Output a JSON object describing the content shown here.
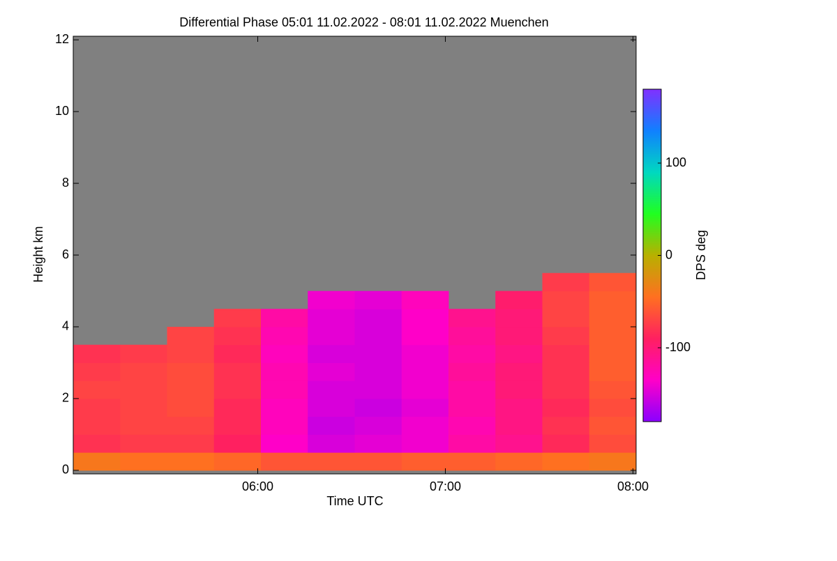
{
  "chart_data": {
    "type": "heatmap",
    "title": "Differential Phase   05:01 11.02.2022 - 08:01 11.02.2022 Muenchen",
    "x_label": "Time UTC",
    "y_label": "Height km",
    "colorbar_label": "DPS deg",
    "x": [
      "05:01",
      "05:16",
      "05:31",
      "05:46",
      "06:01",
      "06:16",
      "06:31",
      "06:46",
      "07:01",
      "07:16",
      "07:31",
      "07:46"
    ],
    "y": [
      0,
      0.5,
      1,
      1.5,
      2,
      2.5,
      3,
      3.5,
      4,
      4.5,
      5
    ],
    "values": [
      [
        -40,
        -45,
        -45,
        -50,
        -60,
        -60,
        -60,
        -55,
        -55,
        -50,
        -45,
        -40
      ],
      [
        -80,
        -75,
        -75,
        -90,
        -135,
        -150,
        -145,
        -140,
        -120,
        -110,
        -85,
        -65
      ],
      [
        -75,
        -70,
        -70,
        -85,
        -130,
        -155,
        -150,
        -140,
        -125,
        -105,
        -80,
        -60
      ],
      [
        -75,
        -70,
        -65,
        -85,
        -130,
        -150,
        -155,
        -145,
        -120,
        -105,
        -85,
        -65
      ],
      [
        -70,
        -70,
        -65,
        -80,
        -125,
        -150,
        -150,
        -140,
        -120,
        -100,
        -80,
        -60
      ],
      [
        -75,
        -70,
        -65,
        -80,
        -125,
        -145,
        -150,
        -140,
        -115,
        -100,
        -80,
        -55
      ],
      [
        -80,
        -75,
        -70,
        -85,
        -130,
        -150,
        -150,
        -140,
        -120,
        -105,
        -80,
        -55
      ],
      [
        null,
        null,
        -70,
        -80,
        -125,
        -145,
        -150,
        -135,
        -115,
        -100,
        -75,
        -55
      ],
      [
        null,
        null,
        null,
        -75,
        -120,
        -145,
        -150,
        -135,
        -110,
        -100,
        -70,
        -55
      ],
      [
        null,
        null,
        null,
        null,
        null,
        -140,
        -145,
        -130,
        null,
        -95,
        -70,
        -55
      ],
      [
        null,
        null,
        null,
        null,
        null,
        null,
        null,
        null,
        null,
        null,
        -75,
        -60
      ]
    ],
    "xlim": [
      "05:01",
      "08:01"
    ],
    "xticks": [
      "06:00",
      "07:00",
      "08:00"
    ],
    "ylim": [
      -0.1,
      12.1
    ],
    "yticks": [
      0,
      2,
      4,
      6,
      8,
      10,
      12
    ],
    "zlim": [
      -180,
      180
    ],
    "zticks": [
      100,
      0,
      -100
    ],
    "colormap": [
      "#8a00ff",
      "#ff00c8",
      "#ff2060",
      "#ff7020",
      "#b8b000",
      "#20ff20",
      "#00d8c0",
      "#1080ff",
      "#8030ff"
    ],
    "nodata_color": "#808080"
  }
}
